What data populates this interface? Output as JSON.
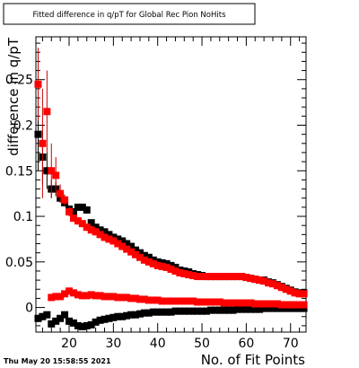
{
  "chart_data": {
    "type": "scatter",
    "title": "Fitted difference in q/pT for Global Rec Pion NoHits",
    "xlabel": "No. of Fit Points",
    "ylabel": "difference in q/pT",
    "timestamp": "Thu May 20 15:58:55 2021",
    "xlim": [
      12.5,
      73.5
    ],
    "ylim": [
      -0.027,
      0.297
    ],
    "x_ticks": [
      20,
      30,
      40,
      50,
      60,
      70
    ],
    "y_ticks": [
      0,
      0.05,
      0.1,
      0.15,
      0.2,
      0.25
    ],
    "y_tick_labels": [
      "0",
      "0.05",
      "0.1",
      "0.15",
      "0.2",
      "0.25"
    ],
    "grid": false,
    "colors": {
      "black": "#000000",
      "red": "#ff0000",
      "error_red": "#cc0000"
    },
    "series": [
      {
        "color": "#000000",
        "x": [
          13,
          14,
          15,
          16,
          17,
          18,
          19,
          20,
          21,
          22,
          23,
          24,
          25,
          26,
          27,
          28,
          29,
          30,
          31,
          32,
          33,
          34,
          35,
          36,
          37,
          38,
          39,
          40,
          41,
          42,
          43,
          44,
          45,
          46,
          47,
          48,
          49,
          50,
          51,
          52,
          53,
          54,
          55,
          56,
          57,
          58,
          59,
          60,
          61,
          62,
          63,
          64,
          65,
          66,
          67,
          68,
          69,
          70,
          71,
          72,
          73
        ],
        "y": [
          0.19,
          0.165,
          0.15,
          0.13,
          0.13,
          0.12,
          0.115,
          0.108,
          0.105,
          0.11,
          0.11,
          0.107,
          0.093,
          0.088,
          0.085,
          0.083,
          0.08,
          0.077,
          0.075,
          0.073,
          0.07,
          0.067,
          0.063,
          0.06,
          0.057,
          0.055,
          0.052,
          0.05,
          0.049,
          0.048,
          0.046,
          0.044,
          0.041,
          0.04,
          0.039,
          0.037,
          0.036,
          0.035,
          0.034,
          0.034,
          0.034,
          0.034,
          0.034,
          0.034,
          0.034,
          0.034,
          0.034,
          0.033,
          0.032,
          0.031,
          0.03,
          0.03,
          0.028,
          0.027,
          0.025,
          0.023,
          0.021,
          0.019,
          0.017,
          0.016,
          0.016
        ],
        "err": [
          0.04,
          0.03,
          0.02,
          0.01,
          0.008,
          0.005,
          0.004,
          0.003,
          0.003,
          0.003,
          0.003,
          0.003,
          0.002,
          0.002,
          0.002,
          0.002,
          0.002,
          0.002,
          0.002,
          0.002,
          0.002,
          0.002,
          0.002,
          0.002,
          0.002,
          0.002,
          0.002,
          0.002,
          0.002,
          0.002,
          0.002,
          0.002,
          0.002,
          0.002,
          0.002,
          0.002,
          0.002,
          0.002,
          0.002,
          0.002,
          0.002,
          0.002,
          0.002,
          0.002,
          0.002,
          0.002,
          0.002,
          0.002,
          0.002,
          0.002,
          0.002,
          0.002,
          0.002,
          0.002,
          0.002,
          0.002,
          0.002,
          0.002,
          0.002,
          0.002,
          0.002
        ]
      },
      {
        "color": "#ff0000",
        "x": [
          13,
          14,
          15,
          16,
          17,
          18,
          19,
          20,
          21,
          22,
          23,
          24,
          25,
          26,
          27,
          28,
          29,
          30,
          31,
          32,
          33,
          34,
          35,
          36,
          37,
          38,
          39,
          40,
          41,
          42,
          43,
          44,
          45,
          46,
          47,
          48,
          49,
          50,
          51,
          52,
          53,
          54,
          55,
          56,
          57,
          58,
          59,
          60,
          61,
          62,
          63,
          64,
          65,
          66,
          67,
          68,
          69,
          70,
          71,
          72,
          73
        ],
        "y": [
          0.245,
          0.18,
          0.215,
          0.15,
          0.145,
          0.125,
          0.118,
          0.105,
          0.098,
          0.095,
          0.092,
          0.088,
          0.085,
          0.083,
          0.08,
          0.077,
          0.075,
          0.073,
          0.07,
          0.067,
          0.064,
          0.061,
          0.058,
          0.055,
          0.052,
          0.05,
          0.048,
          0.046,
          0.045,
          0.044,
          0.042,
          0.04,
          0.038,
          0.037,
          0.036,
          0.035,
          0.034,
          0.034,
          0.034,
          0.034,
          0.034,
          0.034,
          0.034,
          0.034,
          0.034,
          0.034,
          0.034,
          0.033,
          0.032,
          0.031,
          0.03,
          0.029,
          0.027,
          0.026,
          0.024,
          0.022,
          0.02,
          0.018,
          0.016,
          0.015,
          0.015
        ],
        "err": [
          0.04,
          0.06,
          0.045,
          0.03,
          0.02,
          0.01,
          0.006,
          0.005,
          0.004,
          0.004,
          0.003,
          0.003,
          0.003,
          0.003,
          0.002,
          0.002,
          0.002,
          0.002,
          0.002,
          0.002,
          0.002,
          0.002,
          0.002,
          0.002,
          0.002,
          0.002,
          0.002,
          0.002,
          0.002,
          0.002,
          0.002,
          0.002,
          0.002,
          0.002,
          0.002,
          0.002,
          0.002,
          0.002,
          0.002,
          0.002,
          0.002,
          0.002,
          0.002,
          0.002,
          0.002,
          0.002,
          0.002,
          0.002,
          0.002,
          0.002,
          0.002,
          0.002,
          0.002,
          0.002,
          0.002,
          0.002,
          0.002,
          0.002,
          0.002,
          0.002,
          0.002
        ]
      },
      {
        "color": "#000000",
        "x": [
          13,
          14,
          15,
          16,
          17,
          18,
          19,
          20,
          21,
          22,
          23,
          24,
          25,
          26,
          27,
          28,
          29,
          30,
          31,
          32,
          33,
          34,
          35,
          36,
          37,
          38,
          39,
          40,
          41,
          42,
          43,
          44,
          45,
          46,
          47,
          48,
          49,
          50,
          51,
          52,
          53,
          54,
          55,
          56,
          57,
          58,
          59,
          60,
          61,
          62,
          63,
          64,
          65,
          66,
          67,
          68,
          69,
          70,
          71,
          72,
          73
        ],
        "y": [
          -0.012,
          -0.01,
          -0.008,
          -0.018,
          -0.015,
          -0.012,
          -0.008,
          -0.015,
          -0.017,
          -0.02,
          -0.021,
          -0.02,
          -0.019,
          -0.016,
          -0.014,
          -0.013,
          -0.012,
          -0.011,
          -0.01,
          -0.01,
          -0.009,
          -0.008,
          -0.008,
          -0.007,
          -0.006,
          -0.006,
          -0.005,
          -0.005,
          -0.005,
          -0.005,
          -0.005,
          -0.004,
          -0.004,
          -0.004,
          -0.004,
          -0.004,
          -0.004,
          -0.004,
          -0.004,
          -0.003,
          -0.003,
          -0.003,
          -0.003,
          -0.003,
          -0.003,
          -0.002,
          -0.002,
          -0.002,
          -0.002,
          -0.002,
          -0.002,
          -0.001,
          -0.001,
          -0.001,
          -0.001,
          -0.001,
          -0.001,
          -0.001,
          -0.001,
          -0.001,
          -0.001
        ],
        "err": [
          0.004,
          0.004,
          0.003,
          0.003,
          0.003,
          0.003,
          0.003,
          0.003,
          0.002,
          0.002,
          0.002,
          0.002,
          0.002,
          0.002,
          0.002,
          0.002,
          0.002,
          0.002,
          0.002,
          0.002,
          0.002,
          0.002,
          0.002,
          0.002,
          0.002,
          0.002,
          0.002,
          0.002,
          0.002,
          0.002,
          0.002,
          0.002,
          0.002,
          0.002,
          0.002,
          0.002,
          0.002,
          0.002,
          0.002,
          0.002,
          0.002,
          0.002,
          0.002,
          0.002,
          0.002,
          0.002,
          0.002,
          0.002,
          0.002,
          0.002,
          0.002,
          0.002,
          0.002,
          0.002,
          0.002,
          0.002,
          0.002,
          0.002,
          0.002,
          0.002,
          0.002
        ]
      },
      {
        "color": "#ff0000",
        "x": [
          16,
          17,
          18,
          19,
          20,
          21,
          22,
          23,
          24,
          25,
          26,
          27,
          28,
          29,
          30,
          31,
          32,
          33,
          34,
          35,
          36,
          37,
          38,
          39,
          40,
          41,
          42,
          43,
          44,
          45,
          46,
          47,
          48,
          49,
          50,
          51,
          52,
          53,
          54,
          55,
          56,
          57,
          58,
          59,
          60,
          61,
          62,
          63,
          64,
          65,
          66,
          67,
          68,
          69,
          70,
          71,
          72,
          73
        ],
        "y": [
          0.011,
          0.012,
          0.012,
          0.015,
          0.018,
          0.016,
          0.014,
          0.013,
          0.013,
          0.014,
          0.013,
          0.013,
          0.012,
          0.012,
          0.012,
          0.011,
          0.011,
          0.011,
          0.01,
          0.01,
          0.009,
          0.009,
          0.008,
          0.008,
          0.008,
          0.007,
          0.007,
          0.007,
          0.007,
          0.007,
          0.007,
          0.007,
          0.007,
          0.006,
          0.006,
          0.006,
          0.006,
          0.006,
          0.006,
          0.005,
          0.005,
          0.005,
          0.005,
          0.005,
          0.005,
          0.005,
          0.004,
          0.004,
          0.004,
          0.004,
          0.004,
          0.004,
          0.003,
          0.003,
          0.003,
          0.003,
          0.003,
          0.003
        ],
        "err": [
          0.003,
          0.003,
          0.003,
          0.003,
          0.003,
          0.002,
          0.002,
          0.002,
          0.002,
          0.002,
          0.002,
          0.002,
          0.002,
          0.002,
          0.002,
          0.002,
          0.002,
          0.002,
          0.002,
          0.002,
          0.002,
          0.002,
          0.002,
          0.002,
          0.002,
          0.002,
          0.002,
          0.002,
          0.002,
          0.002,
          0.002,
          0.002,
          0.002,
          0.002,
          0.002,
          0.002,
          0.002,
          0.002,
          0.002,
          0.002,
          0.002,
          0.002,
          0.002,
          0.002,
          0.002,
          0.002,
          0.002,
          0.002,
          0.002,
          0.002,
          0.002,
          0.002,
          0.002,
          0.002,
          0.002,
          0.002,
          0.002,
          0.002
        ]
      }
    ]
  }
}
